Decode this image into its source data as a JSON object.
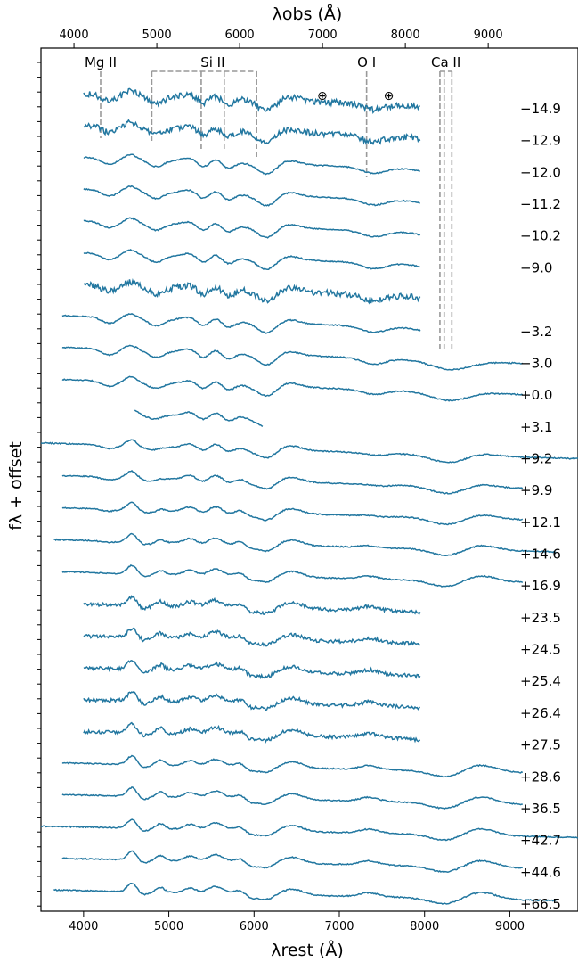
{
  "chart_data": {
    "type": "line",
    "xlabel_bottom": "λrest (Å)",
    "xlabel_top": "λobs (Å)",
    "ylabel": "fλ + offset",
    "xlim": [
      3500,
      9800
    ],
    "bottom_ticks": [
      4000,
      5000,
      6000,
      7000,
      8000,
      9000
    ],
    "top_ticks": [
      4000,
      5000,
      6000,
      7000,
      8000,
      9000
    ],
    "redshift": 0.029,
    "line_color": "#2277a0",
    "marker_color": "#999999",
    "line_markers": [
      {
        "label": "Mg II",
        "x_rest": [
          4200
        ]
      },
      {
        "label": "Si II",
        "x_rest": [
          4800,
          5380,
          5650,
          6030
        ]
      },
      {
        "label": "O I",
        "x_rest": [
          7320
        ]
      },
      {
        "label": "Ca II",
        "x_rest": [
          8180,
          8230,
          8320
        ]
      }
    ],
    "telluric_symbol": "⊕",
    "telluric_rest": [
      6800,
      7580
    ],
    "series": [
      {
        "name": "−14.9",
        "range": [
          4000,
          7950
        ]
      },
      {
        "name": "−12.9",
        "range": [
          4000,
          7950
        ]
      },
      {
        "name": "−12.0",
        "range": [
          4000,
          7950
        ]
      },
      {
        "name": "−11.2",
        "range": [
          4000,
          7950
        ]
      },
      {
        "name": "−10.2",
        "range": [
          4000,
          7950
        ]
      },
      {
        "name": "−9.0",
        "range": [
          4000,
          7950
        ]
      },
      {
        "name": "",
        "range": [
          4000,
          7950
        ]
      },
      {
        "name": "−3.2",
        "range": [
          3750,
          7950
        ]
      },
      {
        "name": "−3.0",
        "range": [
          3750,
          9150
        ]
      },
      {
        "name": "+0.0",
        "range": [
          3750,
          9150
        ]
      },
      {
        "name": "+3.1",
        "range": [
          4600,
          6100
        ]
      },
      {
        "name": "+9.2",
        "range": [
          3500,
          9800
        ]
      },
      {
        "name": "+9.9",
        "range": [
          3750,
          9150
        ]
      },
      {
        "name": "+12.1",
        "range": [
          3750,
          9150
        ]
      },
      {
        "name": "+14.6",
        "range": [
          3650,
          9550
        ]
      },
      {
        "name": "+16.9",
        "range": [
          3750,
          9150
        ]
      },
      {
        "name": "+23.5",
        "range": [
          4000,
          7950
        ]
      },
      {
        "name": "+24.5",
        "range": [
          4000,
          7950
        ]
      },
      {
        "name": "+25.4",
        "range": [
          4000,
          7950
        ]
      },
      {
        "name": "+26.4",
        "range": [
          4000,
          7950
        ]
      },
      {
        "name": "+27.5",
        "range": [
          4000,
          7950
        ]
      },
      {
        "name": "+28.6",
        "range": [
          3750,
          9150
        ]
      },
      {
        "name": "+36.5",
        "range": [
          3750,
          9150
        ]
      },
      {
        "name": "+42.7",
        "range": [
          3500,
          9800
        ]
      },
      {
        "name": "+44.6",
        "range": [
          3750,
          9150
        ]
      },
      {
        "name": "+66.5",
        "range": [
          3650,
          9550
        ]
      }
    ]
  }
}
